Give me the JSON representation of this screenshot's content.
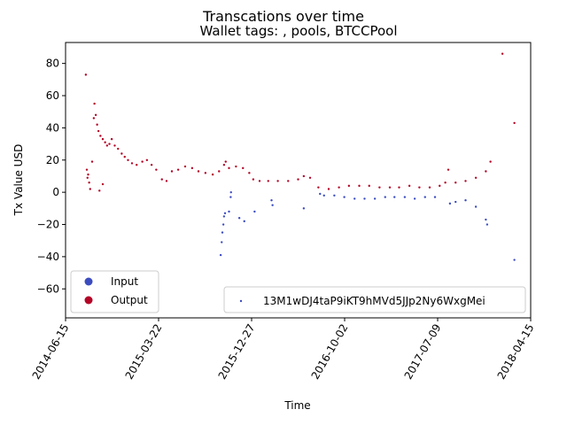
{
  "chart_data": {
    "type": "scatter",
    "suptitle": "Transcations over time",
    "title": "Wallet tags: , pools, BTCCPool",
    "xlabel": "Time",
    "ylabel": "Tx Value USD",
    "x_ticks": [
      "2014-06-15",
      "2015-03-22",
      "2015-12-27",
      "2016-10-02",
      "2017-07-09",
      "2018-04-15"
    ],
    "xlim": [
      "2014-06-15",
      "2018-04-15"
    ],
    "ylim": [
      -78,
      93
    ],
    "y_ticks": [
      -60,
      -40,
      -20,
      0,
      20,
      40,
      60,
      80
    ],
    "legend_type": {
      "placement": "lower-left",
      "entries": [
        {
          "label": "Input",
          "color": "#3b4cc0"
        },
        {
          "label": "Output",
          "color": "#b40426"
        }
      ]
    },
    "legend_series": {
      "placement": "lower-right",
      "label": "13M1wDJ4taP9iKT9hMVd5JJp2Ny6WxgMei"
    },
    "colors": {
      "input": "#3b4cc0",
      "output": "#b40426"
    },
    "series": [
      {
        "type": "Output",
        "points": [
          [
            "2014-08-15",
            73
          ],
          [
            "2014-08-18",
            14
          ],
          [
            "2014-08-22",
            11
          ],
          [
            "2014-08-25",
            6
          ],
          [
            "2014-08-28",
            2
          ],
          [
            "2014-09-03",
            19
          ],
          [
            "2014-09-08",
            46
          ],
          [
            "2014-09-10",
            55
          ],
          [
            "2014-09-14",
            48
          ],
          [
            "2014-09-18",
            42
          ],
          [
            "2014-09-22",
            38
          ],
          [
            "2014-09-28",
            35
          ],
          [
            "2014-10-05",
            33
          ],
          [
            "2014-10-12",
            31
          ],
          [
            "2014-10-18",
            29
          ],
          [
            "2014-10-25",
            30
          ],
          [
            "2014-11-01",
            33
          ],
          [
            "2014-11-10",
            29
          ],
          [
            "2014-11-20",
            27
          ],
          [
            "2014-12-01",
            24
          ],
          [
            "2014-12-10",
            22
          ],
          [
            "2014-12-20",
            20
          ],
          [
            "2015-01-01",
            18
          ],
          [
            "2015-01-15",
            17
          ],
          [
            "2015-02-01",
            19
          ],
          [
            "2015-02-15",
            20
          ],
          [
            "2015-03-01",
            17
          ],
          [
            "2015-03-15",
            14
          ],
          [
            "2015-04-01",
            8
          ],
          [
            "2015-04-15",
            7
          ],
          [
            "2015-05-01",
            13
          ],
          [
            "2015-05-20",
            14
          ],
          [
            "2015-06-10",
            16
          ],
          [
            "2015-07-01",
            15
          ],
          [
            "2015-07-20",
            13
          ],
          [
            "2015-08-10",
            12
          ],
          [
            "2015-09-01",
            11
          ],
          [
            "2015-09-20",
            13
          ],
          [
            "2015-10-05",
            17
          ],
          [
            "2015-10-10",
            19
          ],
          [
            "2015-10-20",
            15
          ],
          [
            "2015-11-10",
            16
          ],
          [
            "2015-12-01",
            15
          ],
          [
            "2015-12-20",
            12
          ],
          [
            "2016-01-01",
            8
          ],
          [
            "2016-01-20",
            7
          ],
          [
            "2016-02-15",
            7
          ],
          [
            "2016-03-15",
            7
          ],
          [
            "2016-04-15",
            7
          ],
          [
            "2016-05-15",
            8
          ],
          [
            "2016-06-01",
            10
          ],
          [
            "2016-06-20",
            9
          ],
          [
            "2016-07-15",
            3
          ],
          [
            "2016-08-15",
            2
          ],
          [
            "2016-09-15",
            3
          ],
          [
            "2016-10-15",
            4
          ],
          [
            "2016-11-15",
            4
          ],
          [
            "2016-12-15",
            4
          ],
          [
            "2017-01-15",
            3
          ],
          [
            "2017-02-15",
            3
          ],
          [
            "2017-03-15",
            3
          ],
          [
            "2017-04-15",
            4
          ],
          [
            "2017-05-15",
            3
          ],
          [
            "2017-06-15",
            3
          ],
          [
            "2017-07-15",
            4
          ],
          [
            "2017-08-01",
            6
          ],
          [
            "2017-08-10",
            14
          ],
          [
            "2017-09-01",
            6
          ],
          [
            "2017-10-01",
            7
          ],
          [
            "2017-11-01",
            9
          ],
          [
            "2017-12-01",
            13
          ],
          [
            "2017-12-15",
            19
          ],
          [
            "2018-01-20",
            86
          ],
          [
            "2018-02-25",
            43
          ],
          [
            "2014-09-25",
            1
          ],
          [
            "2014-10-05",
            5
          ],
          [
            "2014-08-20",
            9
          ]
        ]
      },
      {
        "type": "Input",
        "points": [
          [
            "2015-09-25",
            -39
          ],
          [
            "2015-09-28",
            -31
          ],
          [
            "2015-09-30",
            -25
          ],
          [
            "2015-10-03",
            -20
          ],
          [
            "2015-10-05",
            -15
          ],
          [
            "2015-10-08",
            -13
          ],
          [
            "2015-10-20",
            -12
          ],
          [
            "2015-10-25",
            -3
          ],
          [
            "2015-10-26",
            0
          ],
          [
            "2015-11-20",
            -16
          ],
          [
            "2015-12-05",
            -18
          ],
          [
            "2016-01-05",
            -12
          ],
          [
            "2016-02-25",
            -5
          ],
          [
            "2016-02-28",
            -8
          ],
          [
            "2016-06-01",
            -10
          ],
          [
            "2016-07-20",
            -1
          ],
          [
            "2016-08-01",
            -2
          ],
          [
            "2016-09-01",
            -2
          ],
          [
            "2016-10-01",
            -3
          ],
          [
            "2016-11-01",
            -4
          ],
          [
            "2016-12-01",
            -4
          ],
          [
            "2017-01-01",
            -4
          ],
          [
            "2017-02-01",
            -3
          ],
          [
            "2017-03-01",
            -3
          ],
          [
            "2017-04-01",
            -3
          ],
          [
            "2017-05-01",
            -4
          ],
          [
            "2017-06-01",
            -3
          ],
          [
            "2017-07-01",
            -3
          ],
          [
            "2017-08-15",
            -7
          ],
          [
            "2017-09-01",
            -6
          ],
          [
            "2017-10-01",
            -5
          ],
          [
            "2017-11-01",
            -9
          ],
          [
            "2017-12-01",
            -17
          ],
          [
            "2017-12-05",
            -20
          ],
          [
            "2018-02-25",
            -42
          ]
        ]
      }
    ]
  }
}
